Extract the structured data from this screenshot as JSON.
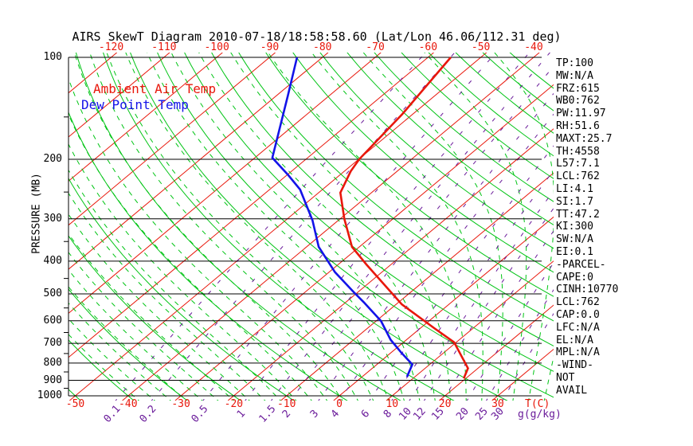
{
  "title": "AIRS SkewT Diagram 2010-07-18/18:58:58.60 (Lat/Lon 46.06/112.31 deg)",
  "legend": {
    "ambient_label": "Ambient Air Temp",
    "dewpoint_label": "Dew Point Temp"
  },
  "axes": {
    "y_label": "PRESSURE (MB)",
    "pressure_ticks": [
      100,
      200,
      300,
      400,
      500,
      600,
      700,
      800,
      900,
      1000
    ],
    "pressure_minor_ticks": [
      150,
      250,
      350,
      450,
      550,
      650,
      750,
      850,
      950
    ],
    "top_temp_labels": [
      -120,
      -110,
      -100,
      -90,
      -80,
      -70,
      -60,
      -50,
      -40
    ],
    "bottom_temp_labels": [
      -50,
      -40,
      -30,
      -20,
      -10,
      0,
      10,
      20,
      30
    ],
    "x_unit_label": "T(C)",
    "mixing_unit_label": "g(g/kg)"
  },
  "stats": [
    "TP:100",
    "MW:N/A",
    "FRZ:615",
    "WB0:762",
    "PW:11.97",
    "RH:51.6",
    "MAXT:25.7",
    "TH:4558",
    "L57:7.1",
    "LCL:762",
    "LI:4.1",
    "SI:1.7",
    "TT:47.2",
    "KI:300",
    "SW:N/A",
    "EI:0.1",
    "-PARCEL-",
    "CAPE:0",
    "CINH:10770",
    "LCL:762",
    "CAP:0.0",
    "LFC:N/A",
    "EL:N/A",
    "MPL:N/A",
    "-WIND-",
    "NOT",
    "AVAIL"
  ],
  "colors": {
    "isotherm_red": "#e8170b",
    "adiabat_green": "#00c414",
    "mixing_purple": "#6a1b9a",
    "ambient_red": "#e8170b",
    "dewpoint_blue": "#1313e8",
    "axis_black": "#000000"
  },
  "chart_data": {
    "type": "line",
    "title": "AIRS SkewT Diagram 2010-07-18/18:58:58.60 (Lat/Lon 46.06/112.31 deg)",
    "xlabel": "T(C)",
    "ylabel": "PRESSURE (MB)",
    "y_scale": "log",
    "ylim": [
      100,
      1000
    ],
    "x_bottom_range_c": [
      -52,
      38
    ],
    "grid": "skew-t background: isotherms / dry adiabats / moist adiabats / mixing ratio lines",
    "isotherms_c": {
      "start": -120,
      "end": 30,
      "step": 10
    },
    "dry_adiabats_theta_c": {
      "start": -60,
      "end": 170,
      "step": 10
    },
    "moist_adiabats_thetaw_c": {
      "start": -39,
      "end": 39,
      "step": 3
    },
    "mixing_ratio_g_kg": [
      0.1,
      0.2,
      0.5,
      1,
      1.5,
      2,
      3,
      4,
      6,
      8,
      10,
      12,
      15,
      20,
      25,
      30
    ],
    "series": [
      {
        "name": "Ambient Air Temp",
        "color": "#e8170b",
        "points_p_t": [
          [
            100,
            -55.7
          ],
          [
            147,
            -52.0
          ],
          [
            200,
            -49.9
          ],
          [
            217,
            -48.8
          ],
          [
            251,
            -45.9
          ],
          [
            300,
            -39.2
          ],
          [
            363,
            -31.4
          ],
          [
            409,
            -24.7
          ],
          [
            463,
            -17.5
          ],
          [
            537,
            -8.9
          ],
          [
            631,
            2.6
          ],
          [
            695,
            9.6
          ],
          [
            829,
            18.1
          ],
          [
            888,
            19.6
          ]
        ]
      },
      {
        "name": "Dew Point Temp",
        "color": "#1313e8",
        "points_p_t": [
          [
            100,
            -84.8
          ],
          [
            130,
            -77.8
          ],
          [
            198,
            -66.7
          ],
          [
            223,
            -59.7
          ],
          [
            246,
            -54.2
          ],
          [
            303,
            -44.9
          ],
          [
            363,
            -37.7
          ],
          [
            431,
            -28.9
          ],
          [
            493,
            -20.9
          ],
          [
            530,
            -16.5
          ],
          [
            601,
            -9.1
          ],
          [
            683,
            -3.0
          ],
          [
            745,
            1.9
          ],
          [
            808,
            6.7
          ],
          [
            879,
            8.5
          ]
        ]
      }
    ]
  }
}
